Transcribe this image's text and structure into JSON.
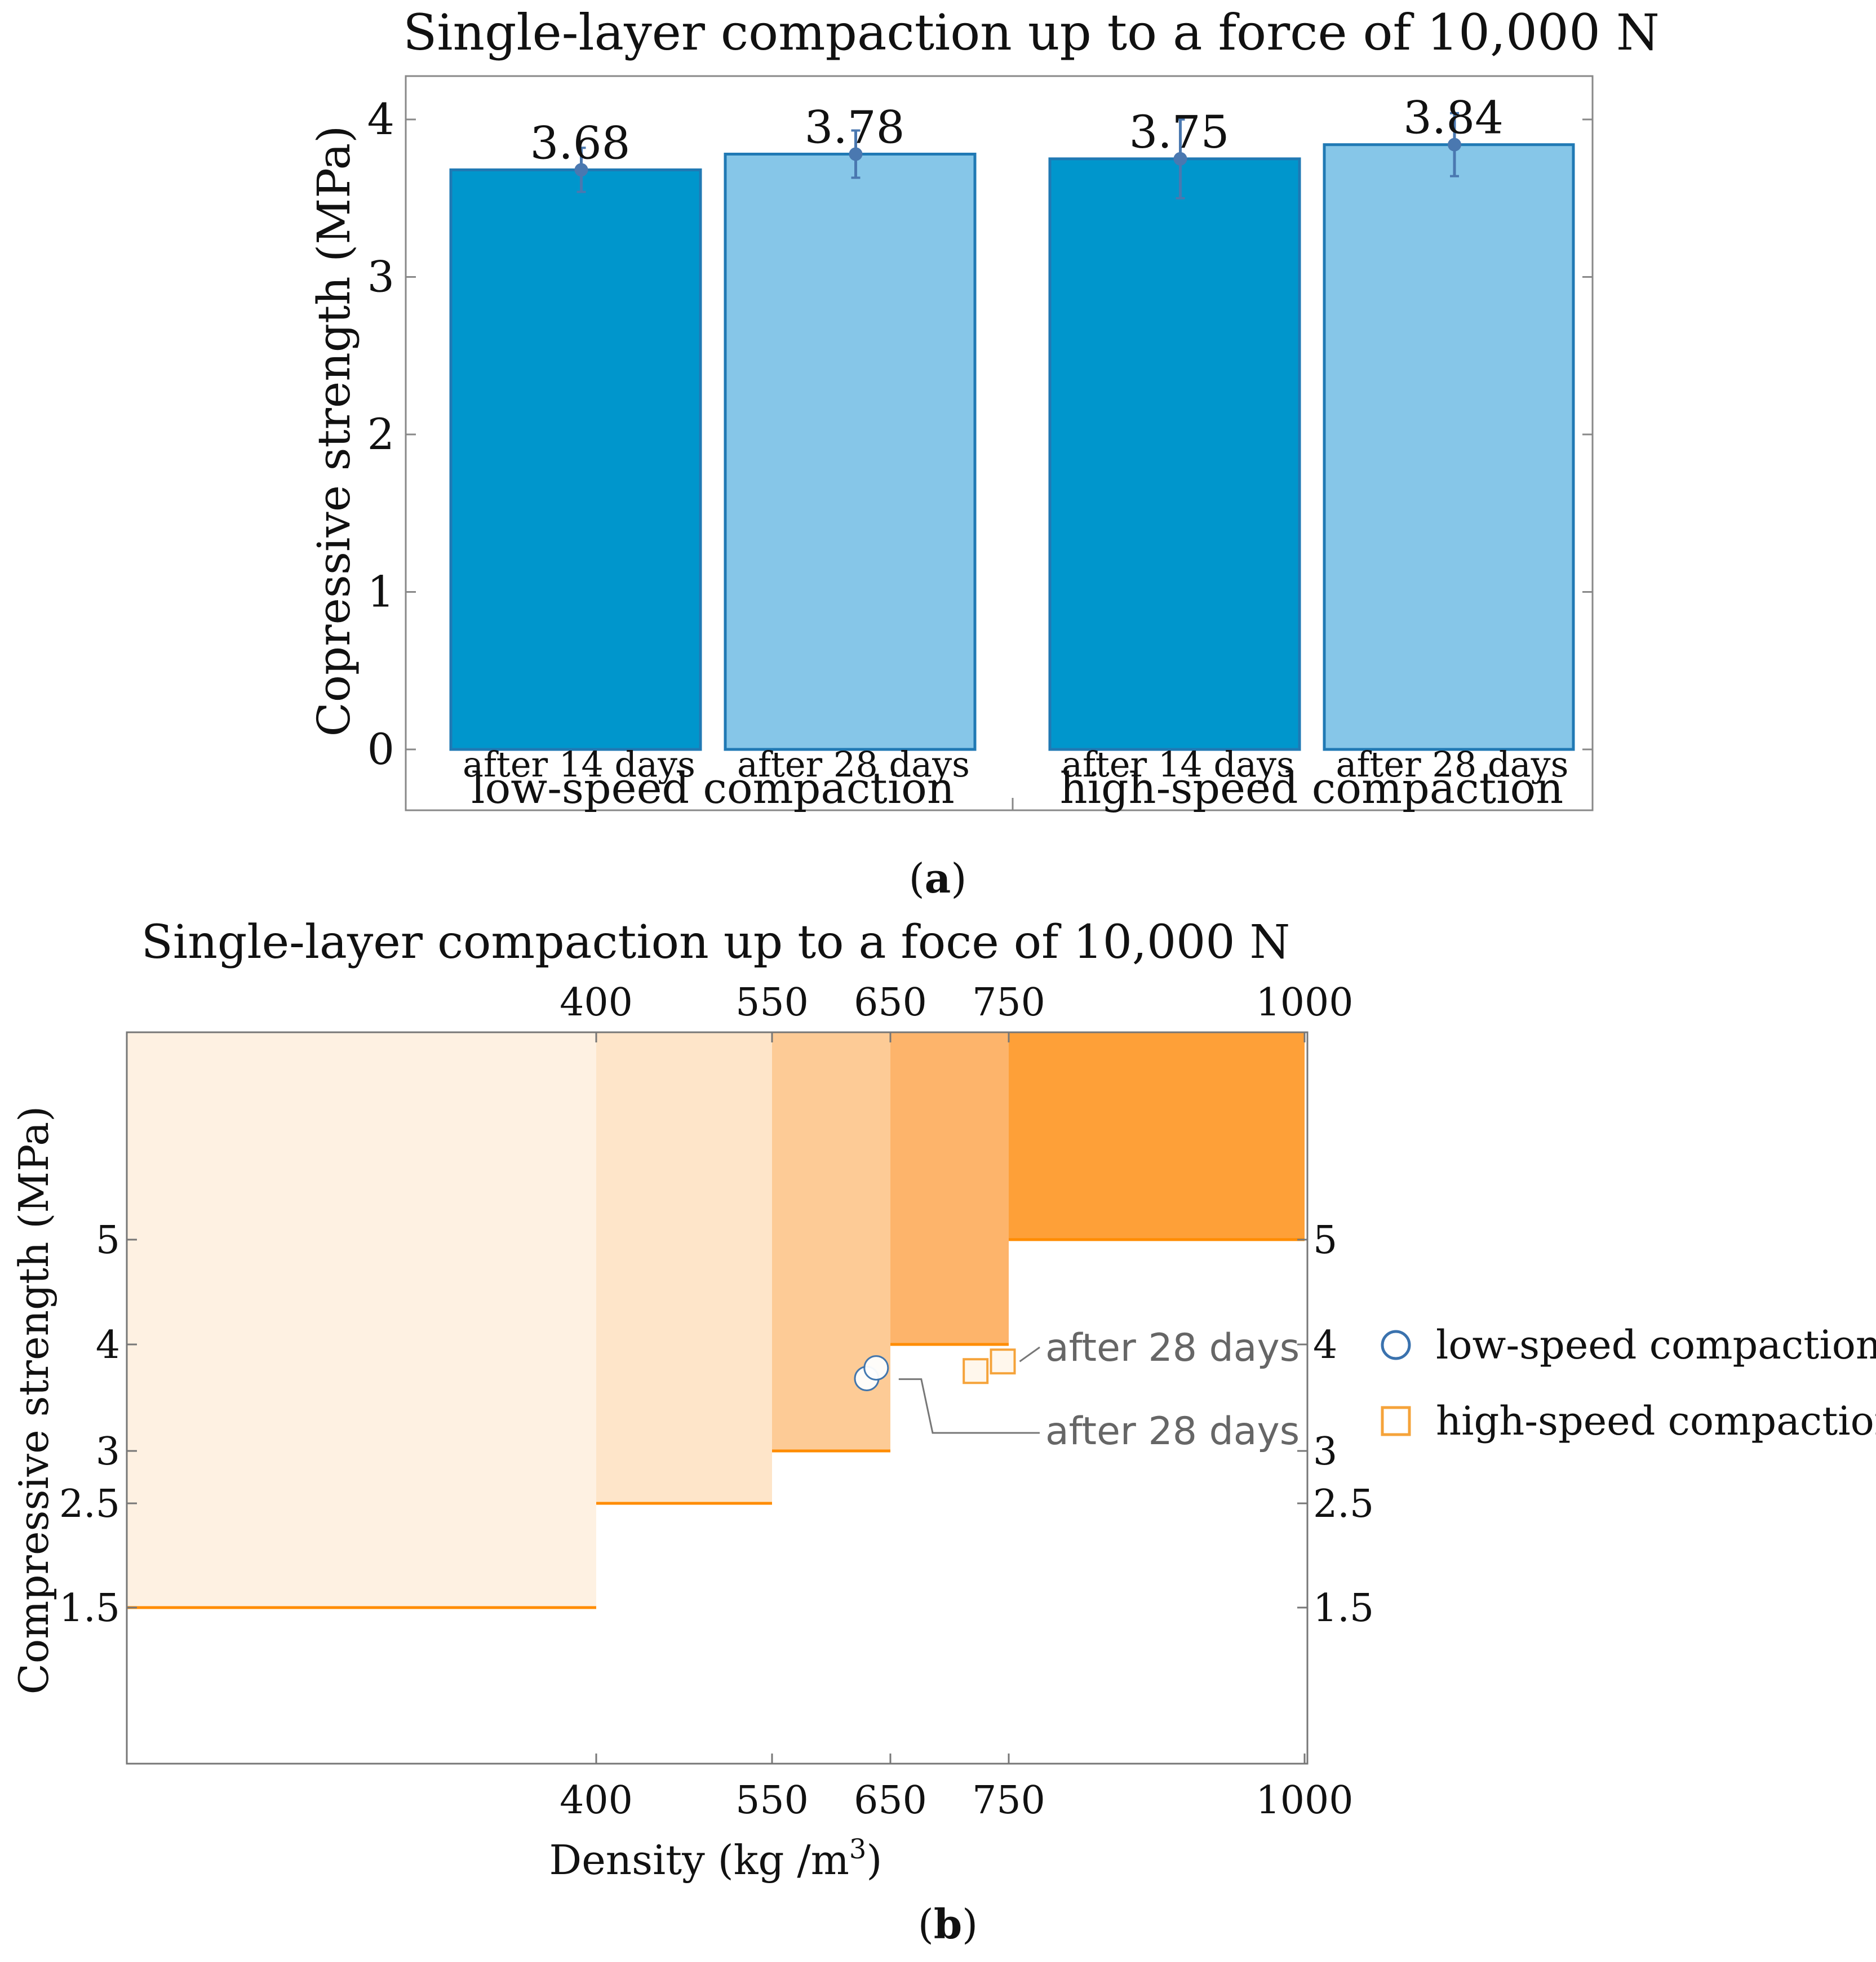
{
  "chart_data": [
    {
      "type": "bar",
      "panel_label": "a",
      "title": "Single-layer compaction up to a force of 10,000 N",
      "xlabel": "",
      "ylabel": "Copressive strength (MPa)",
      "ylim": [
        0,
        4.25
      ],
      "yticks": [
        0,
        1,
        2,
        3,
        4
      ],
      "groups": [
        {
          "label": "low-speed compaction",
          "bars": [
            {
              "category": "after 14 days",
              "value": 3.68,
              "value_label": "3.68",
              "error": 0.14,
              "color": "#0096cc"
            },
            {
              "category": "after 28 days",
              "value": 3.78,
              "value_label": "3.78",
              "error": 0.15,
              "color": "#86c6e8"
            }
          ]
        },
        {
          "label": "high-speed compaction",
          "bars": [
            {
              "category": "after 14 days",
              "value": 3.75,
              "value_label": "3.75",
              "error": 0.25,
              "color": "#0096cc"
            },
            {
              "category": "after 28 days",
              "value": 3.84,
              "value_label": "3.84",
              "error": 0.2,
              "color": "#86c6e8"
            }
          ]
        }
      ],
      "bar_edge_color": "#2079b4",
      "errorbar_color": "#4a78b0"
    },
    {
      "type": "scatter",
      "panel_label": "b",
      "title": "Single-layer compaction up to a foce of 10,000 N",
      "xlabel": "Density (kg /m",
      "xlabel_superscript": "3",
      "xlabel_suffix": ")",
      "ylabel": "Compressive  strength (MPa)",
      "xticks": [
        400,
        550,
        650,
        750,
        1000
      ],
      "xtick_labels": [
        "400",
        "550",
        "650",
        "750",
        "1000"
      ],
      "xlim": [
        0,
        1000
      ],
      "yticks": [
        1.5,
        2.5,
        3,
        4,
        5
      ],
      "ytick_labels": [
        "1.5",
        "2.5",
        "3",
        "4",
        "5"
      ],
      "ylim": [
        0.5,
        7.5
      ],
      "regions": [
        {
          "x_from": 0,
          "x_to": 400,
          "min_strength": 1.5,
          "color": "#fef1e2"
        },
        {
          "x_from": 400,
          "x_to": 550,
          "min_strength": 2.5,
          "color": "#fee5c9"
        },
        {
          "x_from": 550,
          "x_to": 650,
          "min_strength": 3,
          "color": "#fdcb96"
        },
        {
          "x_from": 650,
          "x_to": 750,
          "min_strength": 4,
          "color": "#fdb46b"
        },
        {
          "x_from": 750,
          "x_to": 1000,
          "min_strength": 5,
          "color": "#fea038"
        }
      ],
      "threshold_color": "#ff8c00",
      "series": [
        {
          "name": "low-speed compaction",
          "marker": "circle",
          "color": "#3a72ae",
          "points": [
            {
              "x": 630,
              "y": 3.68
            },
            {
              "x": 638,
              "y": 3.78
            }
          ]
        },
        {
          "name": "high-speed compaction",
          "marker": "square",
          "color": "#f5a33a",
          "points": [
            {
              "x": 722,
              "y": 3.75
            },
            {
              "x": 745,
              "y": 3.84
            }
          ]
        }
      ],
      "annotations": [
        {
          "text": "after 28 days",
          "series": "high-speed compaction",
          "point_index": 1
        },
        {
          "text": "after 28 days",
          "series": "low-speed compaction",
          "point_index": 1
        }
      ],
      "legend_position": "right"
    }
  ]
}
